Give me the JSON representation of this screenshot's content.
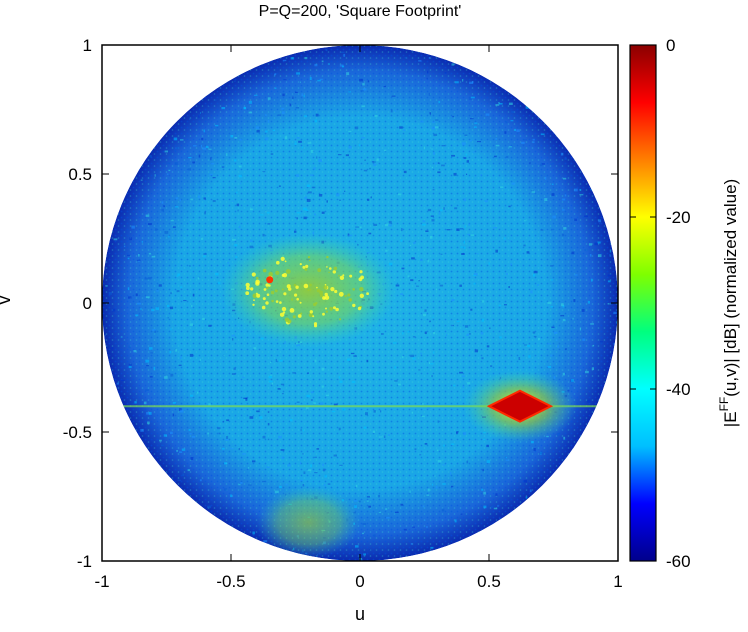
{
  "chart_data": {
    "type": "heatmap",
    "title": "P=Q=200, 'Square Footprint'",
    "xlabel": "u",
    "ylabel": "v",
    "xlim": [
      -1,
      1
    ],
    "ylim": [
      -1,
      1
    ],
    "xticks": [
      -1,
      -0.5,
      0,
      0.5,
      1
    ],
    "yticks": [
      1,
      0.5,
      0,
      -0.5,
      -1
    ],
    "xtick_labels": [
      "-1",
      "-0.5",
      "0",
      "0.5",
      "1"
    ],
    "ytick_labels": [
      "1",
      "0.5",
      "0",
      "-0.5",
      "-1"
    ],
    "colorbar": {
      "label": "|E^FF(u,v)| [dB] (normalized value)",
      "label_base": "|E",
      "label_sup": "FF",
      "label_rest": "(u,v)| [dB] (normalized value)",
      "range": [
        -60,
        0
      ],
      "ticks": [
        0,
        -20,
        -40,
        -60
      ],
      "tick_labels": [
        "0",
        "-20",
        "-40",
        "-60"
      ],
      "colormap": [
        "#00008b",
        "#0000ff",
        "#00bfff",
        "#00ffff",
        "#00ff7f",
        "#7fff00",
        "#ffff00",
        "#ff7f00",
        "#ff0000",
        "#8b0000"
      ]
    },
    "region": "unit-circle u^2+v^2<=1",
    "background_level_db": -40,
    "features": [
      {
        "name": "main-beam",
        "shape": "diamond",
        "u": 0.62,
        "v": -0.4,
        "level_db": 0
      },
      {
        "name": "spot",
        "shape": "point",
        "u": -0.35,
        "v": 0.09,
        "level_db": -3
      },
      {
        "name": "sidelobe-cloud",
        "shape": "ellipse",
        "u": -0.2,
        "v": 0.05,
        "level_db": -22
      },
      {
        "name": "beam-halo",
        "shape": "ellipse",
        "u": 0.6,
        "v": -0.4,
        "level_db": -20
      },
      {
        "name": "horizontal-cut",
        "shape": "line",
        "v": -0.4,
        "level_db": -28
      }
    ]
  }
}
